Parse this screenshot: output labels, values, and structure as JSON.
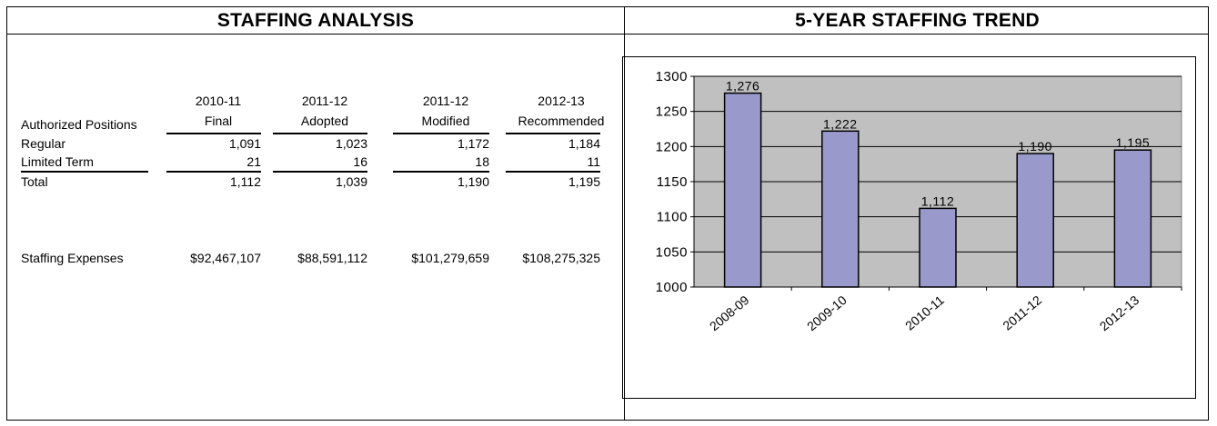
{
  "left_panel": {
    "title": "STAFFING ANALYSIS",
    "columns": [
      {
        "line1": "2010-11",
        "line2": "Final"
      },
      {
        "line1": "2011-12",
        "line2": "Adopted"
      },
      {
        "line1": "2011-12",
        "line2": "Modified"
      },
      {
        "line1": "2012-13",
        "line2": "Recommended"
      }
    ],
    "header_label": "Authorized Positions",
    "rows": [
      {
        "label": "Regular",
        "values": [
          "1,091",
          "1,023",
          "1,172",
          "1,184"
        ]
      },
      {
        "label": "Limited Term",
        "values": [
          "21",
          "16",
          "18",
          "11"
        ]
      },
      {
        "label": "Total",
        "values": [
          "1,112",
          "1,039",
          "1,190",
          "1,195"
        ]
      }
    ],
    "expenses": {
      "label": "Staffing Expenses",
      "values": [
        "$92,467,107",
        "$88,591,112",
        "$101,279,659",
        "$108,275,325"
      ]
    }
  },
  "right_panel": {
    "title": "5-YEAR STAFFING TREND"
  },
  "chart_data": {
    "type": "bar",
    "categories": [
      "2008-09",
      "2009-10",
      "2010-11",
      "2011-12",
      "2012-13"
    ],
    "values": [
      1276,
      1222,
      1112,
      1190,
      1195
    ],
    "data_labels": [
      "1,276",
      "1,222",
      "1,112",
      "1,190",
      "1,195"
    ],
    "ylim": [
      1000,
      1300
    ],
    "yticks": [
      1000,
      1050,
      1100,
      1150,
      1200,
      1250,
      1300
    ],
    "grid": true,
    "legend": "none",
    "bar_color": "#9999cc",
    "plot_background": "#c0c0c0"
  }
}
